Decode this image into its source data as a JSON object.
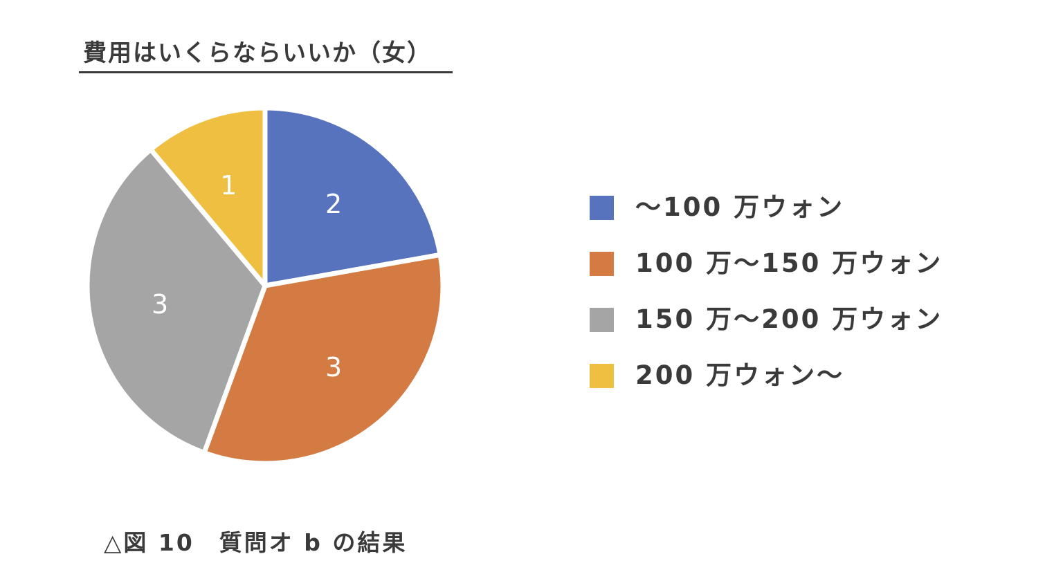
{
  "chart_data": {
    "type": "pie",
    "title": "費用はいくらならいいか（女）",
    "categories": [
      "～100 万ウォン",
      "100 万～150 万ウォン",
      "150 万～200 万ウォン",
      "200 万ウォン～"
    ],
    "values": [
      2,
      3,
      3,
      1
    ],
    "data_labels": [
      "2",
      "3",
      "3",
      "1"
    ],
    "colors": [
      "#5773be",
      "#d37b42",
      "#a5a5a5",
      "#eebf41"
    ],
    "legend_position": "right",
    "start_angle": "12 o'clock, clockwise"
  },
  "caption": "△図 10　質問オ b の結果"
}
